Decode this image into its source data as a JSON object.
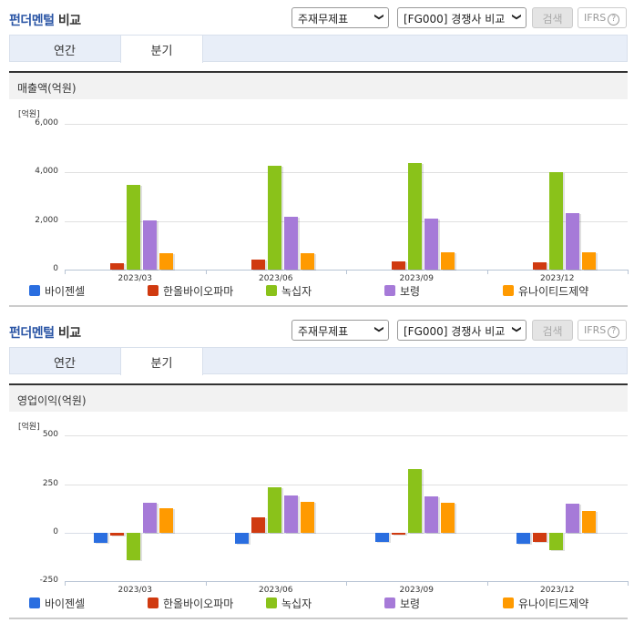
{
  "sections": [
    {
      "title_part1": "펀더멘털",
      "title_part2": " 비교",
      "select_statement": "주재무제표",
      "select_compare": "[FG000] 경쟁사 비교",
      "search_button": "검색",
      "ifrs_button": "IFRS",
      "help_icon": "?",
      "tabs": [
        {
          "label": "연간",
          "active": false
        },
        {
          "label": "분기",
          "active": true
        }
      ],
      "subheader": "매출액(억원)",
      "unit": "[억원]"
    },
    {
      "title_part1": "펀더멘털",
      "title_part2": " 비교",
      "select_statement": "주재무제표",
      "select_compare": "[FG000] 경쟁사 비교",
      "search_button": "검색",
      "ifrs_button": "IFRS",
      "help_icon": "?",
      "tabs": [
        {
          "label": "연간",
          "active": false
        },
        {
          "label": "분기",
          "active": true
        }
      ],
      "subheader": "영업이익(억원)",
      "unit": "[억원]"
    }
  ],
  "legend": [
    {
      "name": "바이젠셀",
      "color": "#2a6ee0"
    },
    {
      "name": "한올바이오파마",
      "color": "#d03a10"
    },
    {
      "name": "녹십자",
      "color": "#8ac21a"
    },
    {
      "name": "보령",
      "color": "#a67ad8"
    },
    {
      "name": "유나이티드제약",
      "color": "#ff9a00"
    }
  ],
  "chart_data": [
    {
      "type": "bar",
      "title": "매출액(억원)",
      "ylabel": "[억원]",
      "xlabel": "",
      "categories": [
        "2023/03",
        "2023/06",
        "2023/09",
        "2023/12"
      ],
      "yticks": [
        "6,000",
        "4,000",
        "2,000",
        "0"
      ],
      "ylim": [
        0,
        6000
      ],
      "grid": true,
      "legend_position": "bottom",
      "series": [
        {
          "name": "바이젠셀",
          "values": [
            0,
            0,
            0,
            0
          ]
        },
        {
          "name": "한올바이오파마",
          "values": [
            280,
            400,
            320,
            290
          ]
        },
        {
          "name": "녹십자",
          "values": [
            3470,
            4290,
            4380,
            4030
          ]
        },
        {
          "name": "보령",
          "values": [
            2010,
            2180,
            2100,
            2330
          ]
        },
        {
          "name": "유나이티드제약",
          "values": [
            660,
            660,
            700,
            700
          ]
        }
      ]
    },
    {
      "type": "bar",
      "title": "영업이익(억원)",
      "ylabel": "[억원]",
      "xlabel": "",
      "categories": [
        "2023/03",
        "2023/06",
        "2023/09",
        "2023/12"
      ],
      "yticks": [
        "500",
        "250",
        "0",
        "-250"
      ],
      "ylim": [
        -250,
        500
      ],
      "grid": true,
      "legend_position": "bottom",
      "series": [
        {
          "name": "바이젠셀",
          "values": [
            -50,
            -55,
            -45,
            -55
          ]
        },
        {
          "name": "한올바이오파마",
          "values": [
            -15,
            80,
            -5,
            -45
          ]
        },
        {
          "name": "녹십자",
          "values": [
            -140,
            235,
            325,
            -90
          ]
        },
        {
          "name": "보령",
          "values": [
            155,
            190,
            185,
            150
          ]
        },
        {
          "name": "유나이티드제약",
          "values": [
            125,
            160,
            155,
            110
          ]
        }
      ]
    }
  ]
}
